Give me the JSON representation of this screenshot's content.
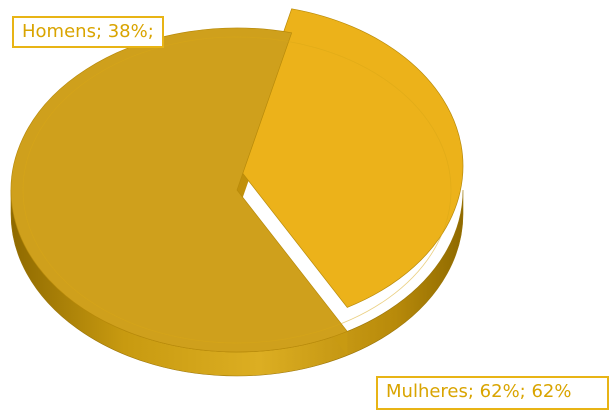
{
  "chart_data": {
    "type": "pie",
    "style": "3d",
    "categories": [
      "Homens",
      "Mulheres"
    ],
    "values": [
      38,
      62
    ],
    "unit": "%",
    "data_labels": [
      "Homens; 38%;",
      "Mulheres; 62%; 62%"
    ],
    "colors": {
      "Homens": "#ecb21a",
      "Mulheres": "#cfa01c",
      "side": "#c09010",
      "label_border": "#e8b415",
      "label_text": "#d9a400"
    }
  }
}
